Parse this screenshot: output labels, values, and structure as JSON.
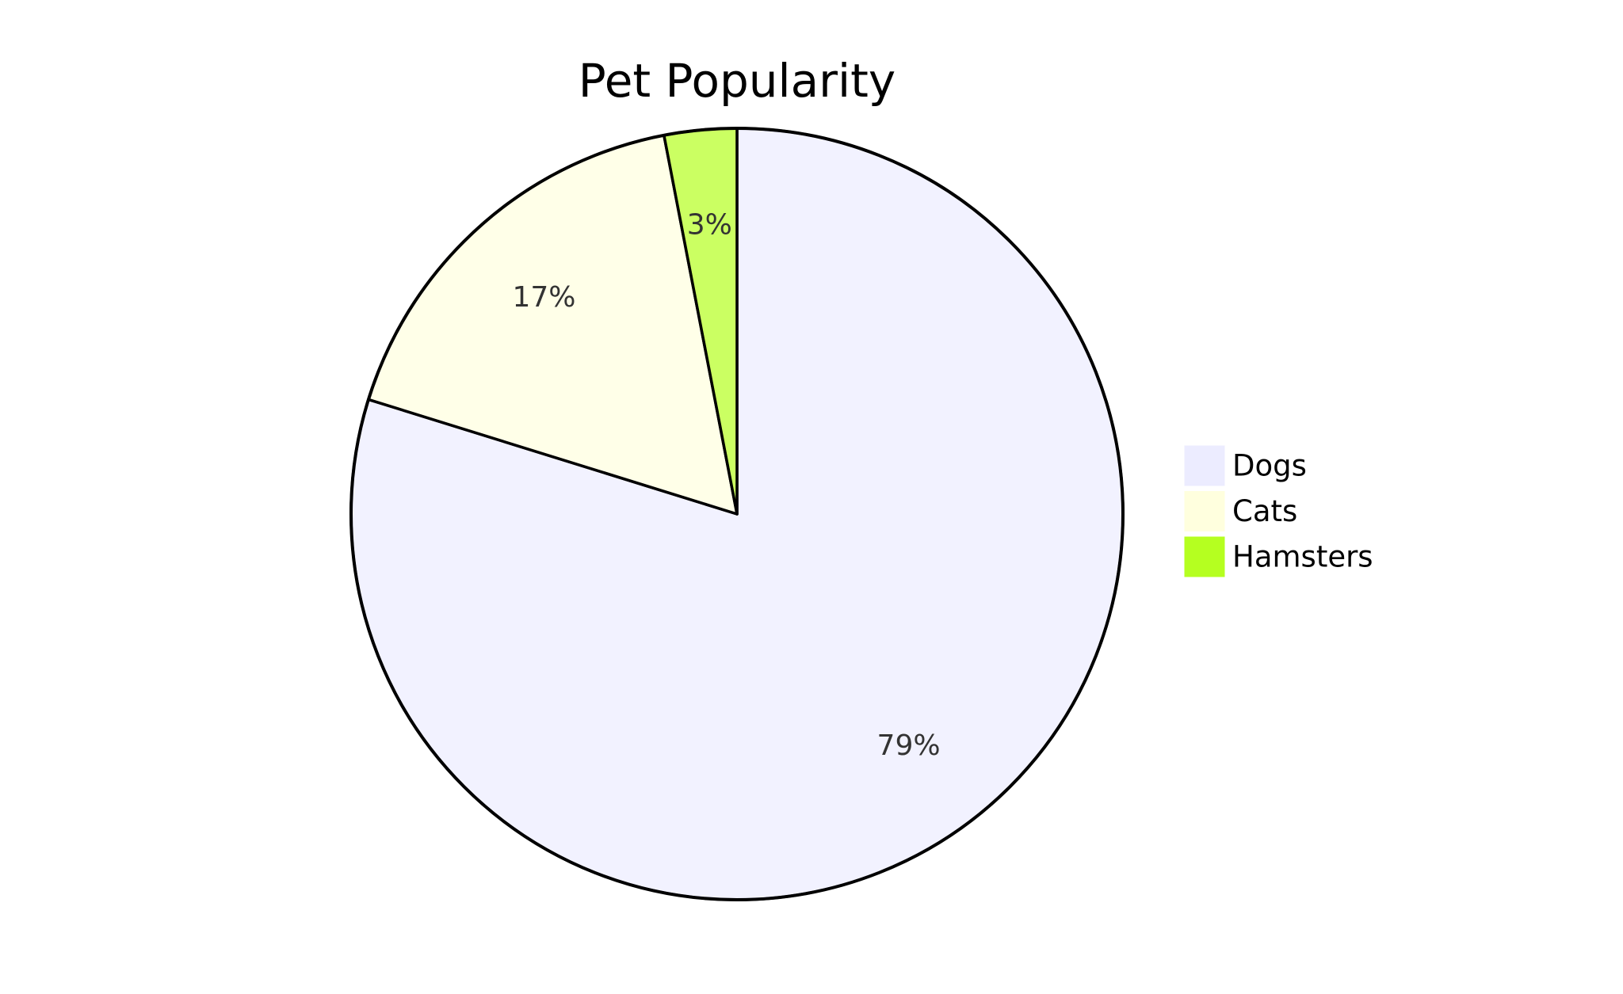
{
  "chart_data": {
    "type": "pie",
    "title": "Pet Popularity",
    "categories": [
      "Dogs",
      "Cats",
      "Hamsters"
    ],
    "values": [
      79,
      17,
      3
    ],
    "value_labels": [
      "79%",
      "17%",
      "3%"
    ],
    "colors": [
      "#ececff",
      "#ffffde",
      "#b5ff20"
    ]
  }
}
